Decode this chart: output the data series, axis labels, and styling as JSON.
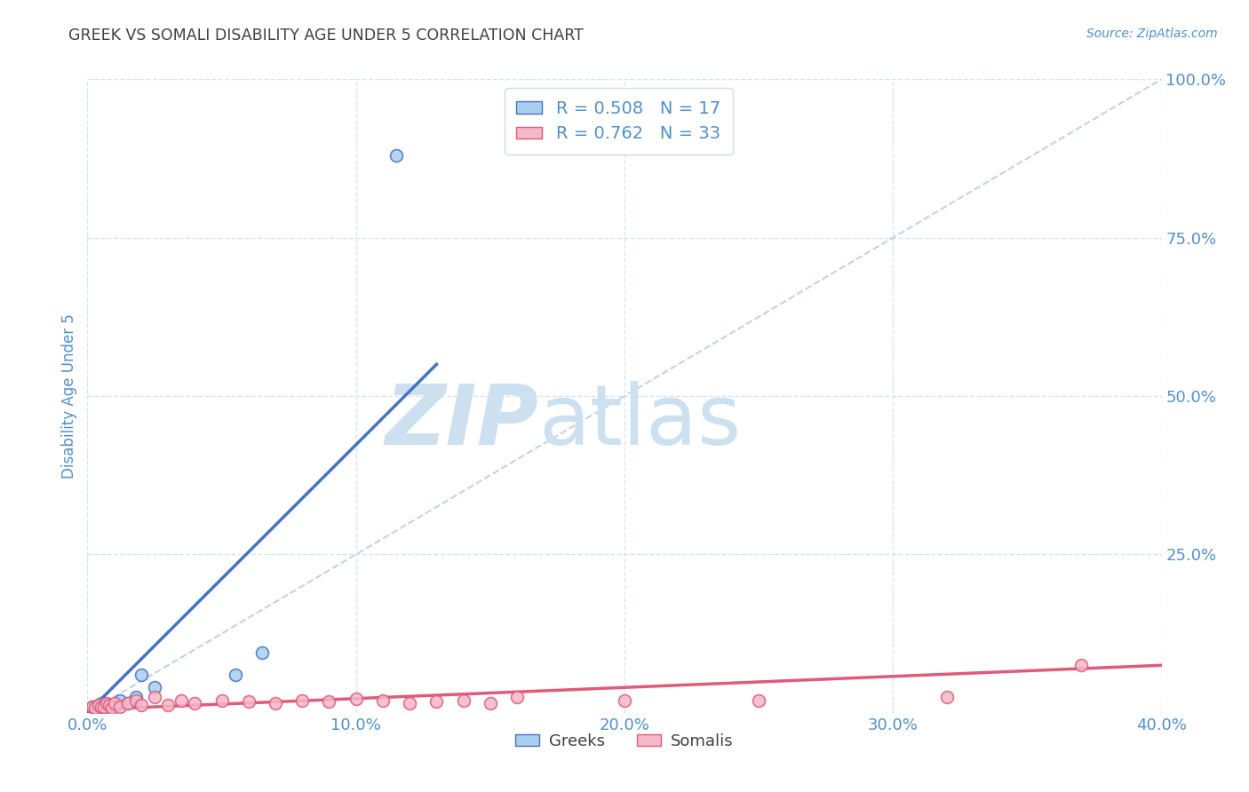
{
  "title": "GREEK VS SOMALI DISABILITY AGE UNDER 5 CORRELATION CHART",
  "source": "Source: ZipAtlas.com",
  "ylabel": "Disability Age Under 5",
  "xlim": [
    0.0,
    0.4
  ],
  "ylim": [
    0.0,
    1.0
  ],
  "xtick_labels": [
    "0.0%",
    "",
    "10.0%",
    "",
    "20.0%",
    "",
    "30.0%",
    "",
    "40.0%"
  ],
  "xtick_vals": [
    0.0,
    0.05,
    0.1,
    0.15,
    0.2,
    0.25,
    0.3,
    0.35,
    0.4
  ],
  "xtick_major_labels": [
    "0.0%",
    "10.0%",
    "20.0%",
    "30.0%",
    "40.0%"
  ],
  "xtick_major_vals": [
    0.0,
    0.1,
    0.2,
    0.3,
    0.4
  ],
  "ytick_labels": [
    "100.0%",
    "75.0%",
    "50.0%",
    "25.0%"
  ],
  "ytick_vals": [
    1.0,
    0.75,
    0.5,
    0.25
  ],
  "greek_color": "#a8cff0",
  "greek_line_color": "#4472c4",
  "somali_color": "#f5b8c8",
  "somali_line_color": "#e05a7a",
  "diagonal_color": "#c0d4e8",
  "legend_greek_R": "0.508",
  "legend_greek_N": "17",
  "legend_somali_R": "0.762",
  "legend_somali_N": "33",
  "greek_points_x": [
    0.002,
    0.003,
    0.004,
    0.005,
    0.006,
    0.007,
    0.008,
    0.009,
    0.01,
    0.012,
    0.015,
    0.018,
    0.02,
    0.025,
    0.055,
    0.065,
    0.115
  ],
  "greek_points_y": [
    0.01,
    0.008,
    0.012,
    0.015,
    0.01,
    0.012,
    0.013,
    0.009,
    0.011,
    0.02,
    0.015,
    0.025,
    0.06,
    0.04,
    0.06,
    0.095,
    0.88
  ],
  "somali_points_x": [
    0.002,
    0.003,
    0.004,
    0.005,
    0.006,
    0.007,
    0.008,
    0.009,
    0.01,
    0.012,
    0.015,
    0.018,
    0.02,
    0.025,
    0.03,
    0.035,
    0.04,
    0.05,
    0.06,
    0.07,
    0.08,
    0.09,
    0.1,
    0.11,
    0.12,
    0.13,
    0.14,
    0.15,
    0.16,
    0.2,
    0.25,
    0.32,
    0.37
  ],
  "somali_points_y": [
    0.01,
    0.008,
    0.012,
    0.01,
    0.009,
    0.015,
    0.012,
    0.008,
    0.015,
    0.01,
    0.015,
    0.02,
    0.012,
    0.025,
    0.012,
    0.02,
    0.015,
    0.02,
    0.018,
    0.015,
    0.02,
    0.018,
    0.022,
    0.02,
    0.015,
    0.018,
    0.02,
    0.015,
    0.025,
    0.02,
    0.02,
    0.025,
    0.075
  ],
  "greek_trend_x": [
    0.0,
    0.13
  ],
  "greek_trend_y": [
    0.0,
    0.55
  ],
  "somali_trend_x": [
    0.0,
    0.4
  ],
  "somali_trend_y": [
    0.005,
    0.075
  ],
  "watermark_zip": "ZIP",
  "watermark_atlas": "atlas",
  "background_color": "#ffffff",
  "grid_color": "#d8e4f0",
  "title_color": "#404040",
  "tick_label_color": "#5090c8",
  "marker_size": 100
}
